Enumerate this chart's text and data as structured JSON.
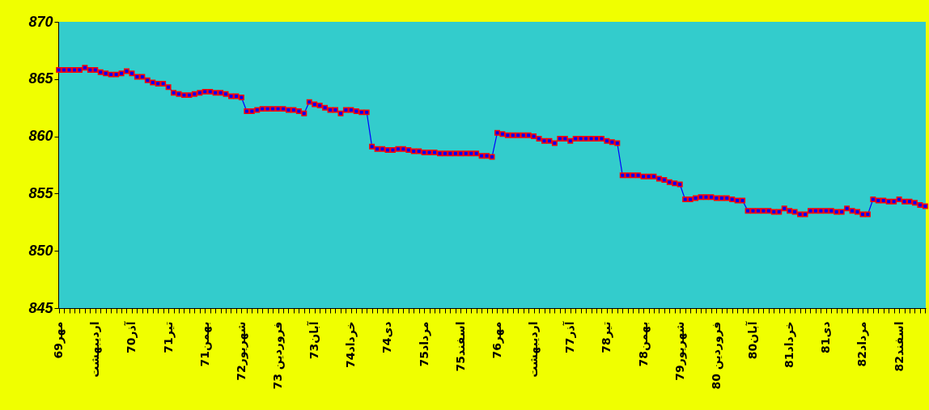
{
  "chart_data": {
    "type": "line",
    "categories": [
      "مهر69",
      null,
      null,
      null,
      null,
      null,
      null,
      "اردیبهشت",
      null,
      null,
      null,
      null,
      null,
      null,
      "آذر70",
      null,
      null,
      null,
      null,
      null,
      null,
      "تیر71",
      null,
      null,
      null,
      null,
      null,
      null,
      "بهمن71",
      null,
      null,
      null,
      null,
      null,
      null,
      "شهریور72",
      null,
      null,
      null,
      null,
      null,
      null,
      "فروردین 73",
      null,
      null,
      null,
      null,
      null,
      null,
      "آبان73",
      null,
      null,
      null,
      null,
      null,
      null,
      "خرداد74",
      null,
      null,
      null,
      null,
      null,
      null,
      "دی74",
      null,
      null,
      null,
      null,
      null,
      null,
      "مرداد75",
      null,
      null,
      null,
      null,
      null,
      null,
      "اسفند75",
      null,
      null,
      null,
      null,
      null,
      null,
      "مهر76",
      null,
      null,
      null,
      null,
      null,
      null,
      "اردیبهشت",
      null,
      null,
      null,
      null,
      null,
      null,
      "آذر77",
      null,
      null,
      null,
      null,
      null,
      null,
      "تیر78",
      null,
      null,
      null,
      null,
      null,
      null,
      "بهمن78",
      null,
      null,
      null,
      null,
      null,
      null,
      "شهریور79",
      null,
      null,
      null,
      null,
      null,
      null,
      "فروردین 80",
      null,
      null,
      null,
      null,
      null,
      null,
      "آبان80",
      null,
      null,
      null,
      null,
      null,
      null,
      "خرداد81",
      null,
      null,
      null,
      null,
      null,
      null,
      "دی81",
      null,
      null,
      null,
      null,
      null,
      null,
      "مرداد82",
      null,
      null,
      null,
      null,
      null,
      null,
      "اسفند82",
      null,
      null,
      null,
      null,
      null
    ],
    "series": [
      {
        "color": "#0000ff",
        "values": [
          865.8,
          865.8,
          865.8,
          865.8,
          865.8,
          866.0,
          865.8,
          865.8,
          865.6,
          865.5,
          865.4,
          865.4,
          865.5,
          865.7,
          865.5,
          865.2,
          865.2,
          864.9,
          864.7,
          864.6,
          864.6,
          864.3,
          863.8,
          863.7,
          863.6,
          863.6,
          863.7,
          863.8,
          863.9,
          863.9,
          863.8,
          863.8,
          863.7,
          863.5,
          863.5,
          863.4,
          862.2,
          862.2,
          862.3,
          862.4,
          862.4,
          862.4,
          862.4,
          862.4,
          862.3,
          862.3,
          862.2,
          862.0,
          863.0,
          862.8,
          862.7,
          862.5,
          862.3,
          862.3,
          862.0,
          862.3,
          862.3,
          862.2,
          862.1,
          862.1,
          859.1,
          858.9,
          858.9,
          858.8,
          858.8,
          858.9,
          858.9,
          858.8,
          858.7,
          858.7,
          858.6,
          858.6,
          858.6,
          858.5,
          858.5,
          858.5,
          858.5,
          858.5,
          858.5,
          858.5,
          858.5,
          858.3,
          858.3,
          858.2,
          860.3,
          860.2,
          860.1,
          860.1,
          860.1,
          860.1,
          860.1,
          860.0,
          859.8,
          859.6,
          859.6,
          859.4,
          859.8,
          859.8,
          859.6,
          859.8,
          859.8,
          859.8,
          859.8,
          859.8,
          859.8,
          859.6,
          859.5,
          859.4,
          856.6,
          856.6,
          856.6,
          856.6,
          856.5,
          856.5,
          856.5,
          856.3,
          856.2,
          856.0,
          855.9,
          855.8,
          854.5,
          854.5,
          854.6,
          854.7,
          854.7,
          854.7,
          854.6,
          854.6,
          854.6,
          854.5,
          854.4,
          854.4,
          853.5,
          853.5,
          853.5,
          853.5,
          853.5,
          853.4,
          853.4,
          853.7,
          853.5,
          853.4,
          853.2,
          853.2,
          853.5,
          853.5,
          853.5,
          853.5,
          853.5,
          853.4,
          853.4,
          853.7,
          853.5,
          853.4,
          853.2,
          853.2,
          854.5,
          854.4,
          854.4,
          854.3,
          854.3,
          854.5,
          854.3,
          854.3,
          854.2,
          854.0,
          853.9
        ]
      }
    ],
    "ylim": [
      845,
      870
    ],
    "yticks": [
      845,
      850,
      855,
      860,
      865,
      870
    ],
    "marker": "square",
    "line_style": "solid",
    "grid": false
  }
}
